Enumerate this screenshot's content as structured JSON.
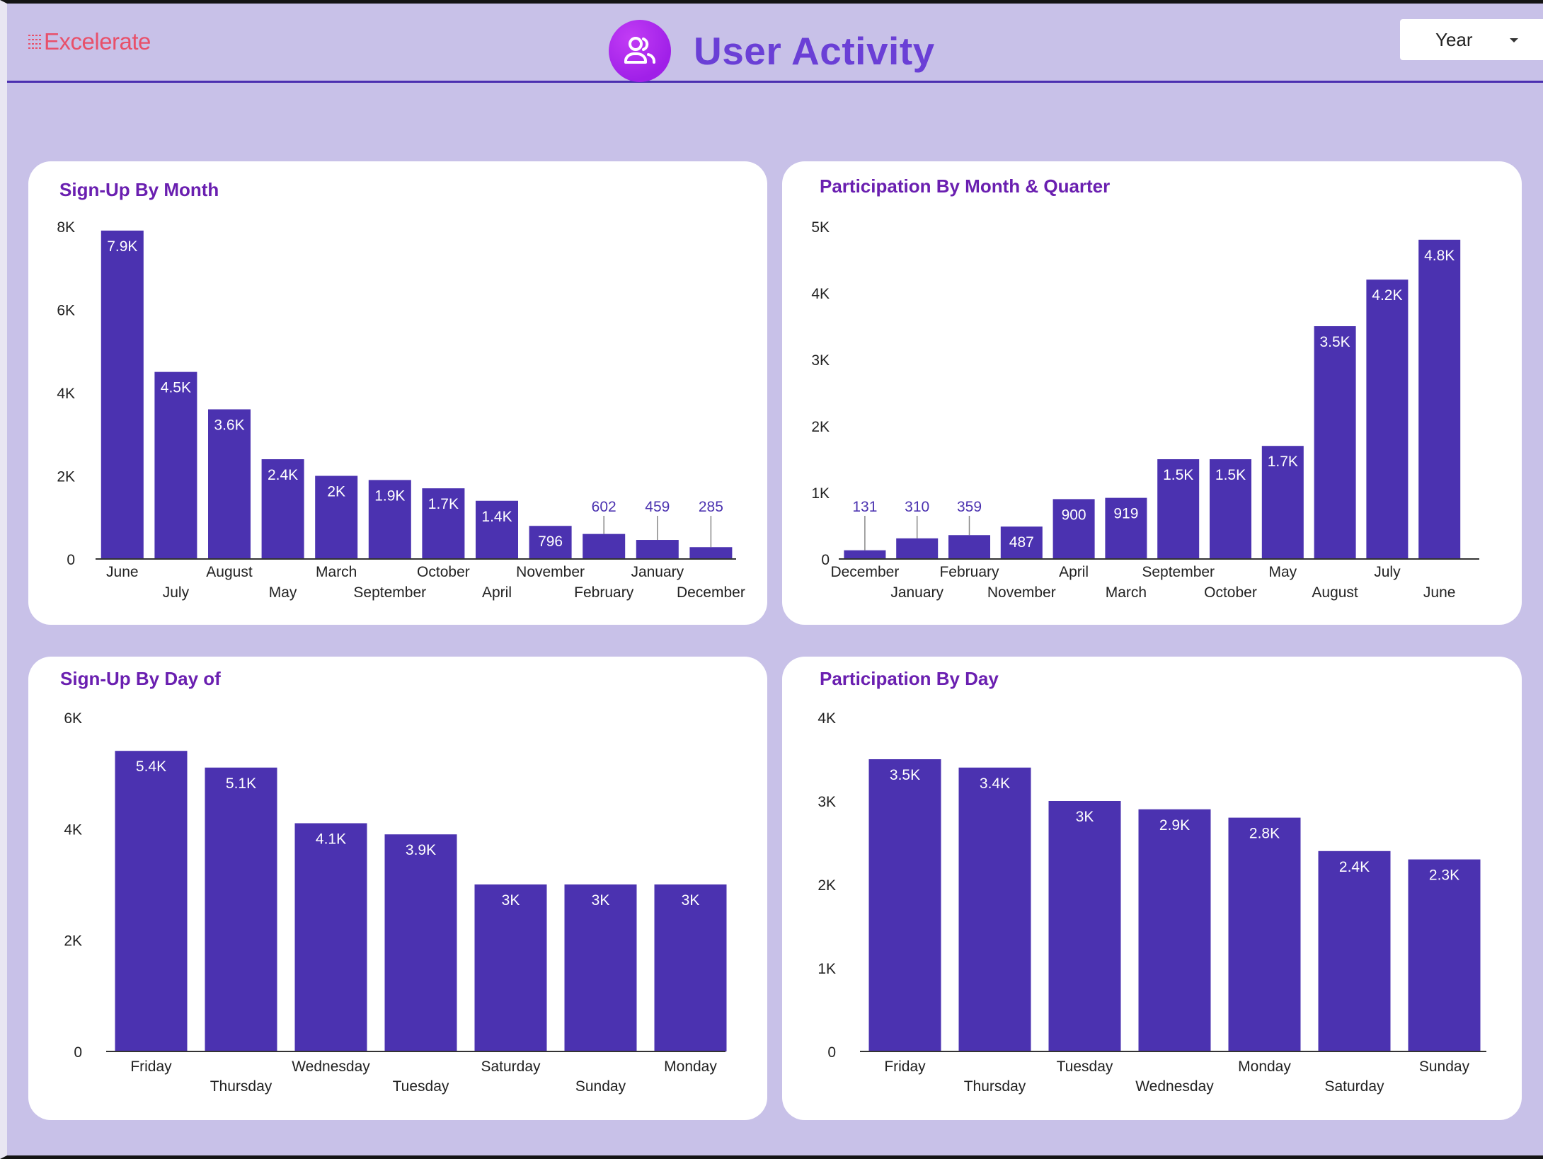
{
  "header": {
    "logo_text": "Excelerate",
    "title": "User Activity",
    "title_icon": "users-icon",
    "filter": {
      "selected": "Year"
    }
  },
  "colors": {
    "background": "#c8c1e8",
    "bar": "#4b32b0",
    "title": "#6a1fb0",
    "accent": "#a020e8",
    "logo": "#e8506a"
  },
  "chart_data": [
    {
      "id": "signup-month",
      "type": "bar",
      "title": "Sign-Up By Month",
      "categories": [
        "June",
        "July",
        "August",
        "May",
        "March",
        "September",
        "October",
        "April",
        "November",
        "February",
        "January",
        "December"
      ],
      "values": [
        7900,
        4500,
        3600,
        2400,
        2000,
        1900,
        1700,
        1400,
        796,
        602,
        459,
        285
      ],
      "value_labels": [
        "7.9K",
        "4.5K",
        "3.6K",
        "2.4K",
        "2K",
        "1.9K",
        "1.7K",
        "1.4K",
        "796",
        "602",
        "459",
        "285"
      ],
      "yticks": [
        0,
        2000,
        4000,
        6000,
        8000
      ],
      "ytick_labels": [
        "0",
        "2K",
        "4K",
        "6K",
        "8K"
      ],
      "ylim": [
        0,
        8000
      ],
      "legend": "none",
      "grid": false
    },
    {
      "id": "participation-month",
      "type": "bar",
      "title": "Participation By Month & Quarter",
      "categories": [
        "December",
        "January",
        "February",
        "November",
        "April",
        "March",
        "September",
        "October",
        "May",
        "August",
        "July",
        "June"
      ],
      "values": [
        131,
        310,
        359,
        487,
        900,
        919,
        1500,
        1500,
        1700,
        3500,
        4200,
        4800
      ],
      "value_labels": [
        "131",
        "310",
        "359",
        "487",
        "900",
        "919",
        "1.5K",
        "1.5K",
        "1.7K",
        "3.5K",
        "4.2K",
        "4.8K"
      ],
      "yticks": [
        0,
        1000,
        2000,
        3000,
        4000,
        5000
      ],
      "ytick_labels": [
        "0",
        "1K",
        "2K",
        "3K",
        "4K",
        "5K"
      ],
      "ylim": [
        0,
        5000
      ],
      "legend": "none",
      "grid": false
    },
    {
      "id": "signup-day",
      "type": "bar",
      "title": "Sign-Up By Day of",
      "categories": [
        "Friday",
        "Thursday",
        "Wednesday",
        "Tuesday",
        "Saturday",
        "Sunday",
        "Monday"
      ],
      "values": [
        5400,
        5100,
        4100,
        3900,
        3000,
        3000,
        3000
      ],
      "value_labels": [
        "5.4K",
        "5.1K",
        "4.1K",
        "3.9K",
        "3K",
        "3K",
        "3K"
      ],
      "yticks": [
        0,
        2000,
        4000,
        6000
      ],
      "ytick_labels": [
        "0",
        "2K",
        "4K",
        "6K"
      ],
      "ylim": [
        0,
        6000
      ],
      "legend": "none",
      "grid": false
    },
    {
      "id": "participation-day",
      "type": "bar",
      "title": "Participation By Day",
      "categories": [
        "Friday",
        "Thursday",
        "Tuesday",
        "Wednesday",
        "Monday",
        "Saturday",
        "Sunday"
      ],
      "values": [
        3500,
        3400,
        3000,
        2900,
        2800,
        2400,
        2300
      ],
      "value_labels": [
        "3.5K",
        "3.4K",
        "3K",
        "2.9K",
        "2.8K",
        "2.4K",
        "2.3K"
      ],
      "yticks": [
        0,
        1000,
        2000,
        3000,
        4000
      ],
      "ytick_labels": [
        "0",
        "1K",
        "2K",
        "3K",
        "4K"
      ],
      "ylim": [
        0,
        4000
      ],
      "legend": "none",
      "grid": false
    }
  ]
}
